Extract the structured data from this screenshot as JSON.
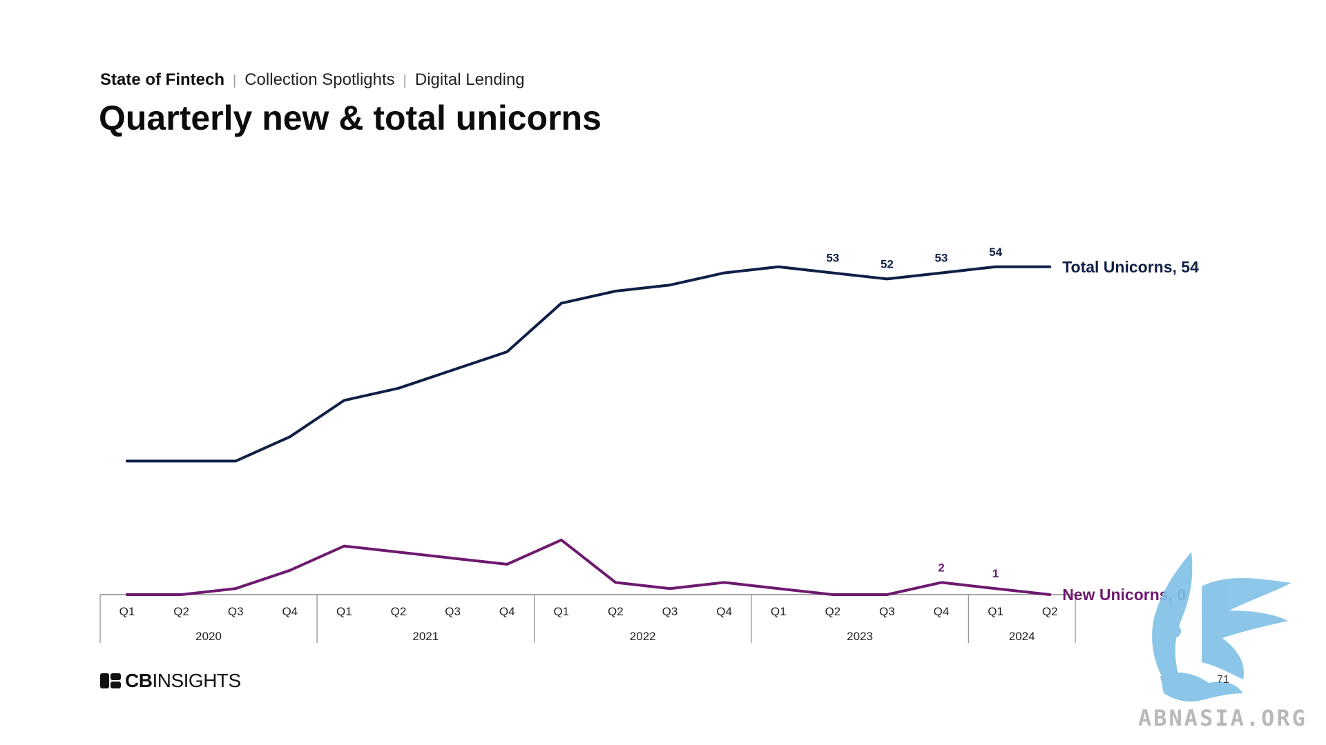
{
  "header": {
    "breadcrumb_root": "State of Fintech",
    "breadcrumb_items": [
      "Collection Spotlights",
      "Digital Lending"
    ],
    "separator": "|",
    "title": "Quarterly new & total unicorns"
  },
  "footer": {
    "brand_bold": "CB",
    "brand_light": "INSIGHTS",
    "page_number": "71"
  },
  "watermark": {
    "text": "ABNASIA.ORG",
    "icon": "griffin-logo"
  },
  "colors": {
    "total": "#0f1f45",
    "new": "#6d1a6e",
    "axis": "#8a8a8a"
  },
  "chart_data": {
    "type": "line",
    "title": "Quarterly new & total unicorns",
    "x": [
      "Q1",
      "Q2",
      "Q3",
      "Q4",
      "Q1",
      "Q2",
      "Q3",
      "Q4",
      "Q1",
      "Q2",
      "Q3",
      "Q4",
      "Q1",
      "Q2",
      "Q3",
      "Q4",
      "Q1",
      "Q2"
    ],
    "year_groups": [
      {
        "label": "2020",
        "span": 4
      },
      {
        "label": "2021",
        "span": 4
      },
      {
        "label": "2022",
        "span": 4
      },
      {
        "label": "2023",
        "span": 4
      },
      {
        "label": "2024",
        "span": 2
      }
    ],
    "ylim": [
      0,
      60
    ],
    "grid": false,
    "series": [
      {
        "name": "Total Unicorns",
        "end_label": "Total Unicorns, 54",
        "values": [
          22,
          22,
          22,
          26,
          32,
          34,
          37,
          40,
          48,
          50,
          51,
          53,
          54,
          53,
          52,
          53,
          54,
          54
        ],
        "data_labels": {
          "13": "53",
          "14": "52",
          "15": "53",
          "16": "54"
        }
      },
      {
        "name": "New Unicorns",
        "end_label": "New Unicorns, 0",
        "values": [
          0,
          0,
          1,
          4,
          8,
          7,
          6,
          5,
          9,
          2,
          1,
          2,
          1,
          0,
          0,
          2,
          1,
          0
        ],
        "data_labels": {
          "15": "2",
          "16": "1"
        }
      }
    ]
  }
}
